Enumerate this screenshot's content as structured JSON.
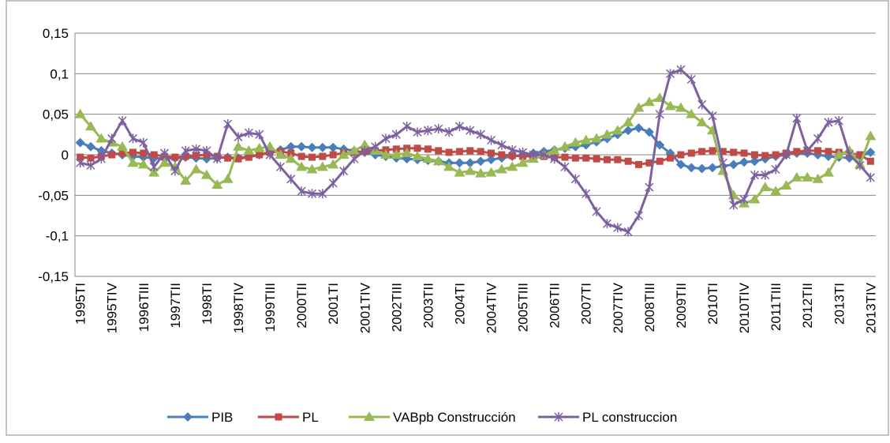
{
  "chart_data": {
    "type": "line",
    "categories": [
      "1995TI",
      null,
      null,
      "1995TIV",
      null,
      null,
      "1996TIII",
      null,
      null,
      "1997TII",
      null,
      null,
      "1998TI",
      null,
      null,
      "1998TIV",
      null,
      null,
      "1999TIII",
      null,
      null,
      "2000TII",
      null,
      null,
      "2001TI",
      null,
      null,
      "2001TIV",
      null,
      null,
      "2002TIII",
      null,
      null,
      "2003TII",
      null,
      null,
      "2004TI",
      null,
      null,
      "2004TIV",
      null,
      null,
      "2005TIII",
      null,
      null,
      "2006TII",
      null,
      null,
      "2007TI",
      null,
      null,
      "2007TIV",
      null,
      null,
      "2008TIII",
      null,
      null,
      "2009TII",
      null,
      null,
      "2010TI",
      null,
      null,
      "2010TIV",
      null,
      null,
      "2011TIII",
      null,
      null,
      "2012TII",
      null,
      null,
      "2013TI",
      null,
      null,
      "2013TIV"
    ],
    "series": [
      {
        "name": "PIB",
        "color": "#4a7ebb",
        "marker": "diamond",
        "values": [
          0.015,
          0.01,
          0.005,
          0.002,
          0,
          -0.002,
          -0.003,
          -0.004,
          -0.005,
          -0.004,
          -0.003,
          -0.004,
          -0.005,
          -0.004,
          -0.003,
          -0.004,
          -0.002,
          0,
          0.003,
          0.006,
          0.01,
          0.01,
          0.009,
          0.009,
          0.009,
          0.007,
          0.005,
          0.003,
          0,
          -0.002,
          -0.004,
          -0.005,
          -0.006,
          -0.007,
          -0.008,
          -0.01,
          -0.01,
          -0.01,
          -0.008,
          -0.006,
          -0.004,
          -0.002,
          0,
          0.002,
          0.004,
          0.006,
          0.008,
          0.01,
          0.012,
          0.016,
          0.02,
          0.025,
          0.03,
          0.033,
          0.028,
          0.012,
          0.002,
          -0.012,
          -0.016,
          -0.017,
          -0.016,
          -0.014,
          -0.012,
          -0.009,
          -0.008,
          -0.005,
          -0.002,
          0,
          0.002,
          0.002,
          0,
          -0.002,
          -0.003,
          -0.004,
          -0.002,
          0.003
        ]
      },
      {
        "name": "PL",
        "color": "#be4b48",
        "marker": "square",
        "values": [
          -0.003,
          -0.004,
          -0.002,
          0,
          0.002,
          0.003,
          0.002,
          0,
          -0.002,
          -0.003,
          -0.002,
          -0.001,
          0,
          -0.002,
          -0.004,
          -0.005,
          -0.003,
          0,
          0.003,
          0.004,
          0.002,
          -0.002,
          -0.003,
          -0.002,
          0,
          0.002,
          0.003,
          0.004,
          0.005,
          0.006,
          0.007,
          0.008,
          0.008,
          0.007,
          0.005,
          0.003,
          0.004,
          0.005,
          0.004,
          0.002,
          0,
          -0.001,
          -0.002,
          -0.002,
          -0.002,
          -0.003,
          -0.003,
          -0.004,
          -0.004,
          -0.005,
          -0.006,
          -0.006,
          -0.008,
          -0.012,
          -0.01,
          -0.008,
          -0.004,
          0,
          0.002,
          0.004,
          0.005,
          0.004,
          0.003,
          0.002,
          0,
          -0.001,
          0,
          0.002,
          0.004,
          0.005,
          0.005,
          0.004,
          0.003,
          0.002,
          0,
          -0.008
        ]
      },
      {
        "name": "VABpb Construcción",
        "color": "#98b954",
        "marker": "triangle",
        "values": [
          0.05,
          0.035,
          0.02,
          0.015,
          0.01,
          -0.01,
          -0.012,
          -0.022,
          -0.01,
          -0.015,
          -0.032,
          -0.018,
          -0.025,
          -0.037,
          -0.03,
          0.01,
          0.005,
          0.008,
          0.01,
          0,
          -0.005,
          -0.015,
          -0.018,
          -0.015,
          -0.012,
          0,
          0.005,
          0.012,
          0.005,
          0,
          0,
          0.002,
          -0.002,
          -0.005,
          -0.008,
          -0.015,
          -0.022,
          -0.02,
          -0.023,
          -0.022,
          -0.018,
          -0.015,
          -0.01,
          -0.005,
          0,
          0.005,
          0.01,
          0.015,
          0.018,
          0.02,
          0.025,
          0.03,
          0.04,
          0.058,
          0.065,
          0.07,
          0.06,
          0.058,
          0.05,
          0.04,
          0.03,
          -0.02,
          -0.05,
          -0.06,
          -0.055,
          -0.04,
          -0.045,
          -0.038,
          -0.028,
          -0.028,
          -0.03,
          -0.022,
          0,
          0.005,
          -0.012,
          0.023
        ]
      },
      {
        "name": "PL construccion",
        "color": "#7d60a0",
        "marker": "star",
        "values": [
          -0.01,
          -0.013,
          -0.005,
          0.02,
          0.042,
          0.02,
          0.015,
          -0.015,
          0.002,
          -0.02,
          0.005,
          0.007,
          0.005,
          -0.005,
          0.038,
          0.022,
          0.027,
          0.025,
          0,
          -0.015,
          -0.03,
          -0.045,
          -0.048,
          -0.048,
          -0.035,
          -0.02,
          -0.005,
          0.005,
          0.01,
          0.02,
          0.025,
          0.035,
          0.028,
          0.03,
          0.032,
          0.028,
          0.035,
          0.03,
          0.025,
          0.018,
          0.012,
          0.006,
          0.003,
          0,
          0,
          -0.005,
          -0.015,
          -0.03,
          -0.048,
          -0.07,
          -0.085,
          -0.09,
          -0.095,
          -0.075,
          -0.04,
          0.05,
          0.1,
          0.105,
          0.093,
          0.062,
          0.048,
          -0.01,
          -0.062,
          -0.055,
          -0.025,
          -0.025,
          -0.018,
          0,
          0.045,
          0.005,
          0.02,
          0.04,
          0.042,
          0,
          -0.013,
          -0.028
        ]
      }
    ],
    "ylim": [
      -0.15,
      0.15
    ],
    "yticks": [
      {
        "value": -0.15,
        "label": "-0,15"
      },
      {
        "value": -0.1,
        "label": "-0,1"
      },
      {
        "value": -0.05,
        "label": "-0,05"
      },
      0,
      {
        "value": 0.05,
        "label": "0,05"
      },
      {
        "value": 0.1,
        "label": "0,1"
      },
      {
        "value": 0.15,
        "label": "0,15"
      }
    ],
    "grid": true,
    "legend": "bottom"
  }
}
